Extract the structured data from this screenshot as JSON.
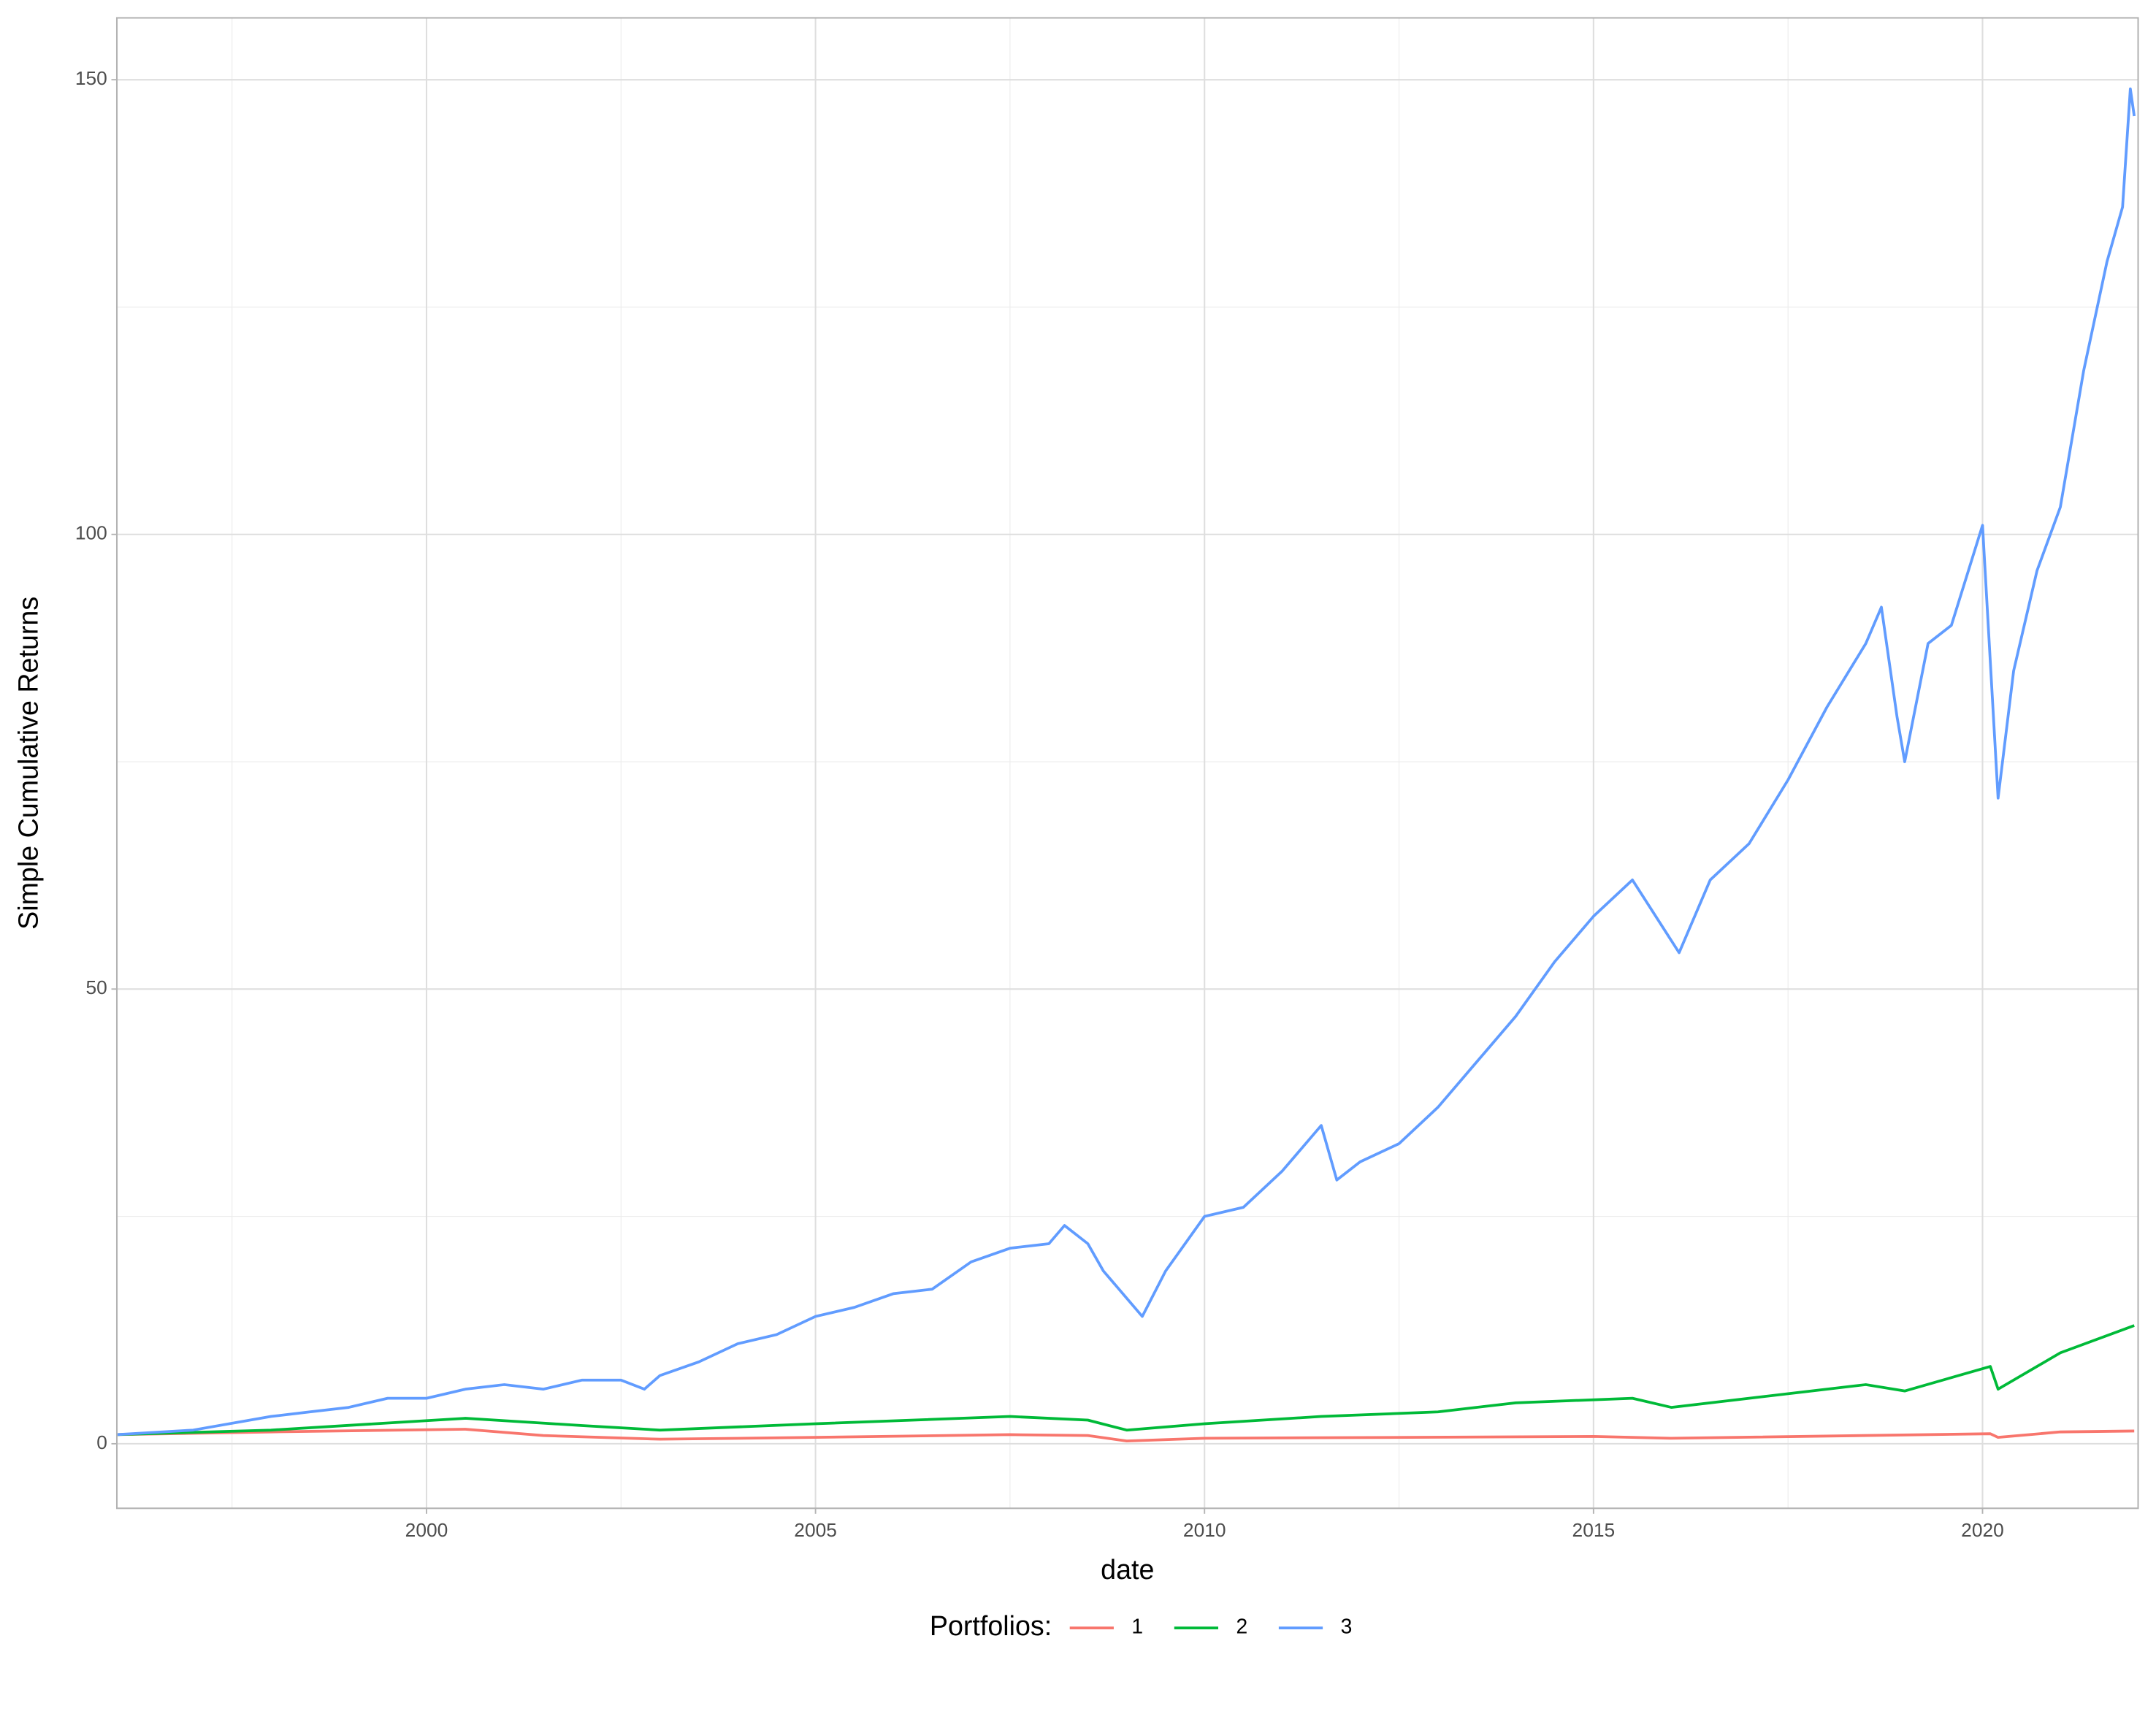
{
  "chart_data": {
    "type": "line",
    "x_label": "date",
    "y_label": "Simple Cumulative Returns",
    "legend_title": "Portfolios:",
    "legend_position": "bottom",
    "xlim": [
      1996.02,
      2022.0
    ],
    "xticks": [
      2000,
      2005,
      2010,
      2015,
      2020
    ],
    "xminor": [
      1997.5,
      2002.5,
      2007.5,
      2012.5,
      2017.5
    ],
    "ylim": [
      -7.1,
      156.8
    ],
    "yticks": [
      0,
      50,
      100,
      150
    ],
    "yminor": [
      25,
      75,
      125
    ],
    "grid": true,
    "series": [
      {
        "name": "1",
        "color": "#f8766d",
        "x": [
          1996.02,
          1998,
          2000.5,
          2001.5,
          2003,
          2005,
          2007.5,
          2008.5,
          2009,
          2010,
          2015,
          2016,
          2020.1,
          2020.2,
          2021,
          2021.95
        ],
        "values": [
          1,
          1.3,
          1.6,
          0.9,
          0.5,
          0.7,
          1,
          0.9,
          0.3,
          0.6,
          0.8,
          0.6,
          1.1,
          0.7,
          1.3,
          1.4
        ]
      },
      {
        "name": "2",
        "color": "#00ba38",
        "x": [
          1996.02,
          1998,
          2000.5,
          2002,
          2003,
          2005,
          2007.5,
          2008.5,
          2009,
          2010,
          2011.5,
          2013,
          2014,
          2015.5,
          2016,
          2017,
          2018.5,
          2019,
          2020.1,
          2020.2,
          2021,
          2021.95
        ],
        "values": [
          1,
          1.5,
          2.8,
          2,
          1.5,
          2.2,
          3,
          2.6,
          1.5,
          2.2,
          3,
          3.5,
          4.5,
          5,
          4,
          5,
          6.5,
          5.8,
          8.5,
          6,
          10,
          13
        ]
      },
      {
        "name": "3",
        "color": "#619cff",
        "x": [
          1996.02,
          1997,
          1998,
          1998.5,
          1999,
          1999.5,
          2000,
          2000.5,
          2001,
          2001.5,
          2002,
          2002.5,
          2002.8,
          2003,
          2003.5,
          2004,
          2004.5,
          2005,
          2005.5,
          2006,
          2006.5,
          2007,
          2007.5,
          2008,
          2008.2,
          2008.5,
          2008.7,
          2009.2,
          2009.5,
          2010,
          2010.5,
          2011,
          2011.5,
          2011.7,
          2012,
          2012.5,
          2013,
          2013.5,
          2014,
          2014.5,
          2015,
          2015.5,
          2016.1,
          2016.5,
          2017,
          2017.5,
          2018,
          2018.5,
          2018.7,
          2018.9,
          2019,
          2019.3,
          2019.6,
          2020,
          2020.2,
          2020.4,
          2020.7,
          2021,
          2021.3,
          2021.6,
          2021.8,
          2021.9,
          2021.95
        ],
        "values": [
          1,
          1.5,
          3,
          3.5,
          4,
          5,
          5,
          6,
          6.5,
          6,
          7,
          7,
          6,
          7.5,
          9,
          11,
          12,
          14,
          15,
          16.5,
          17,
          20,
          21.5,
          22,
          24,
          22,
          19,
          14,
          19,
          25,
          26,
          30,
          35,
          29,
          31,
          33,
          37,
          42,
          47,
          53,
          58,
          62,
          54,
          62,
          66,
          73,
          81,
          88,
          92,
          80,
          75,
          88,
          90,
          101,
          71,
          85,
          96,
          103,
          118,
          130,
          136,
          149,
          146
        ]
      }
    ]
  }
}
